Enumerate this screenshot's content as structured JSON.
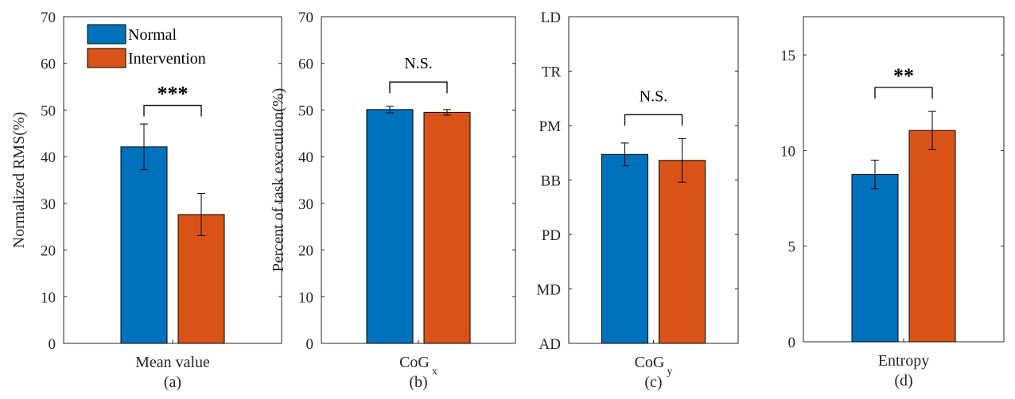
{
  "colors": {
    "normal": "#0072BD",
    "intervention": "#D95319",
    "axis": "#262626"
  },
  "chart_data": [
    {
      "type": "bar",
      "panel": "(a)",
      "categories": [
        "Mean value"
      ],
      "xlabel": "Mean value",
      "ylabel": "Normalized RMS(%)",
      "ylim": [
        0,
        70
      ],
      "yticks": [
        0,
        10,
        20,
        30,
        40,
        50,
        60,
        70
      ],
      "yticklabels": [
        "0",
        "10",
        "20",
        "30",
        "40",
        "50",
        "60",
        "70"
      ],
      "series": [
        {
          "name": "Normal",
          "values": [
            42.1
          ],
          "errors": [
            4.9
          ]
        },
        {
          "name": "Intervention",
          "values": [
            27.6
          ],
          "errors": [
            4.5
          ]
        }
      ],
      "significance": "***",
      "sig_height": 51,
      "legend": "top-left"
    },
    {
      "type": "bar",
      "panel": "(b)",
      "categories": [
        "CoGx"
      ],
      "xlabel": "CoG",
      "xlabel_sub": "x",
      "ylabel": "Percent of task execution(%)",
      "ylim": [
        0,
        70
      ],
      "yticks": [
        0,
        10,
        20,
        30,
        40,
        50,
        60,
        70
      ],
      "yticklabels": [
        "0",
        "10",
        "20",
        "30",
        "40",
        "50",
        "60",
        "70"
      ],
      "series": [
        {
          "name": "Normal",
          "values": [
            50.1
          ],
          "errors": [
            0.7
          ]
        },
        {
          "name": "Intervention",
          "values": [
            49.5
          ],
          "errors": [
            0.6
          ]
        }
      ],
      "significance": "N.S.",
      "sig_height": 56
    },
    {
      "type": "bar",
      "panel": "(c)",
      "categories": [
        "CoGy"
      ],
      "xlabel": "CoG",
      "xlabel_sub": "y",
      "ylim": [
        0,
        6
      ],
      "yticks": [
        0,
        1,
        2,
        3,
        4,
        5,
        6
      ],
      "yticklabels": [
        "AD",
        "MD",
        "PD",
        "BB",
        "PM",
        "TR",
        "LD"
      ],
      "series": [
        {
          "name": "Normal",
          "values": [
            3.47
          ],
          "errors": [
            0.21
          ]
        },
        {
          "name": "Intervention",
          "values": [
            3.36
          ],
          "errors": [
            0.4
          ]
        }
      ],
      "significance": "N.S.",
      "sig_height": 4.2
    },
    {
      "type": "bar",
      "panel": "(d)",
      "categories": [
        "Entropy"
      ],
      "xlabel": "Entropy",
      "ylim": [
        0,
        17
      ],
      "yticks": [
        0,
        5,
        10,
        15
      ],
      "yticklabels": [
        "0",
        "5",
        "10",
        "15"
      ],
      "series": [
        {
          "name": "Normal",
          "values": [
            8.75
          ],
          "errors": [
            0.75
          ]
        },
        {
          "name": "Intervention",
          "values": [
            11.05
          ],
          "errors": [
            1.0
          ]
        }
      ],
      "significance": "**",
      "sig_height": 13.3
    }
  ]
}
